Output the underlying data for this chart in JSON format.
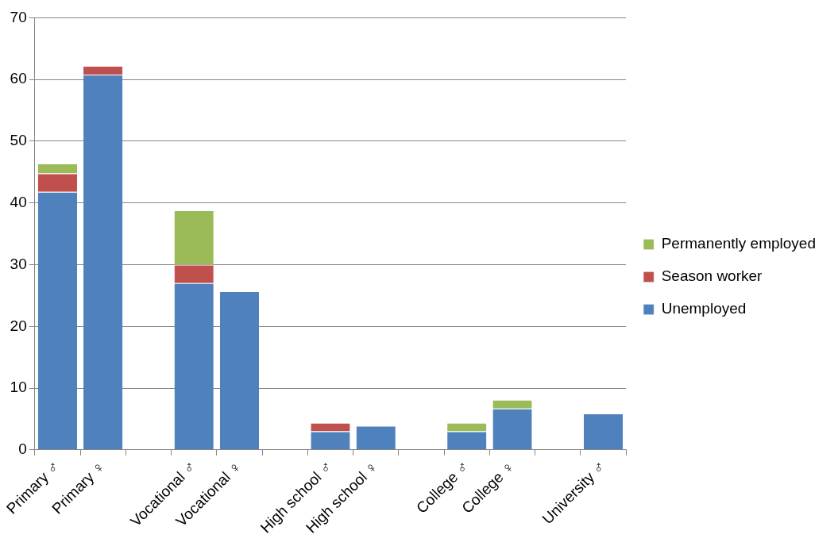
{
  "chart_data": {
    "type": "bar",
    "stacked": true,
    "categories": [
      "Primary ♂",
      "Primary ♀",
      null,
      "Vocational ♂",
      "Vocational ♀",
      null,
      "High school ♂",
      "High school ♀",
      null,
      "College ♂",
      "College ♀",
      null,
      "University ♂"
    ],
    "series": [
      {
        "name": "Unemployed",
        "color": "#4f81bd",
        "values": [
          41.8,
          60.8,
          null,
          27,
          25.7,
          null,
          3,
          3.9,
          null,
          3,
          6.7,
          null,
          5.9
        ]
      },
      {
        "name": "Season worker",
        "color": "#c0504d",
        "values": [
          3,
          1.4,
          null,
          3,
          null,
          null,
          1.4,
          null,
          null,
          null,
          null,
          null,
          null
        ]
      },
      {
        "name": "Permanently employed",
        "color": "#9bbb59",
        "values": [
          1.6,
          null,
          null,
          8.8,
          null,
          null,
          null,
          null,
          null,
          1.4,
          1.4,
          null,
          null
        ]
      }
    ],
    "ylim": [
      0,
      70
    ],
    "yticks": [
      0,
      10,
      20,
      30,
      40,
      50,
      60,
      70
    ],
    "grid": "y",
    "legend": "right"
  }
}
